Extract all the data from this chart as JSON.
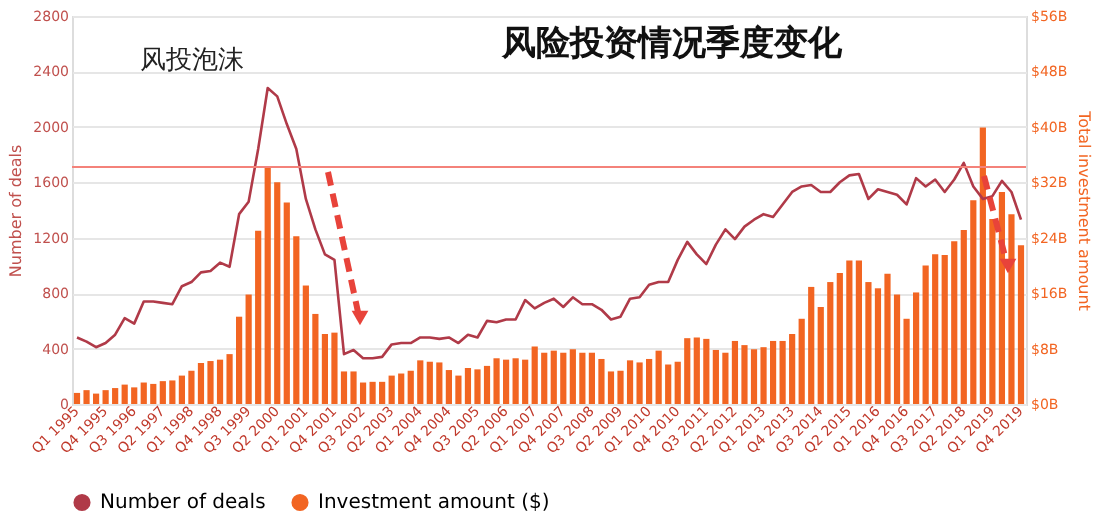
{
  "chart_data": {
    "type": "bar",
    "title": "风险投资情况季度变化",
    "ylabel": "Number of deals",
    "y2label": "Total investment amount",
    "categories": [
      "Q1 1995",
      null,
      null,
      "Q4 1995",
      null,
      null,
      "Q3 1996",
      null,
      null,
      "Q2 1997",
      null,
      null,
      "Q1 1998",
      null,
      null,
      "Q4 1998",
      null,
      null,
      "Q3 1999",
      null,
      null,
      "Q2 2000",
      null,
      null,
      "Q1 2001",
      null,
      null,
      "Q4 2001",
      null,
      null,
      "Q3 2002",
      null,
      null,
      "Q2 2003",
      null,
      null,
      "Q1 2004",
      null,
      null,
      "Q4 2004",
      null,
      null,
      "Q3 2005",
      null,
      null,
      "Q2 2006",
      null,
      null,
      "Q1 2007",
      null,
      null,
      "Q4 2007",
      null,
      null,
      "Q3 2008",
      null,
      null,
      "Q2 2009",
      null,
      null,
      "Q1 2010",
      null,
      null,
      "Q4 2010",
      null,
      null,
      "Q3 2011",
      null,
      null,
      "Q2 2012",
      null,
      null,
      "Q1 2013",
      null,
      null,
      "Q4 2013",
      null,
      null,
      "Q3 2014",
      null,
      null,
      "Q2 2015",
      null,
      null,
      "Q1 2016",
      null,
      null,
      "Q4 2016",
      null,
      null,
      "Q3 2017",
      null,
      null,
      "Q2 2018",
      null,
      null,
      "Q1 2019",
      null,
      null,
      "Q4 2019"
    ],
    "series": [
      {
        "name": "Number of deals",
        "type": "line",
        "color": "#b03a48",
        "values": [
          480,
          450,
          410,
          440,
          500,
          620,
          580,
          740,
          740,
          730,
          720,
          850,
          880,
          950,
          960,
          1020,
          990,
          1370,
          1460,
          1840,
          2280,
          2220,
          2020,
          1840,
          1480,
          1260,
          1080,
          1040,
          360,
          390,
          330,
          330,
          340,
          430,
          440,
          440,
          480,
          480,
          470,
          480,
          440,
          500,
          480,
          600,
          590,
          610,
          610,
          750,
          690,
          730,
          760,
          700,
          770,
          720,
          720,
          680,
          610,
          630,
          760,
          770,
          860,
          880,
          880,
          1040,
          1170,
          1080,
          1010,
          1150,
          1260,
          1190,
          1280,
          1330,
          1370,
          1350,
          1440,
          1530,
          1570,
          1580,
          1530,
          1530,
          1600,
          1650,
          1660,
          1480,
          1550,
          1530,
          1510,
          1440,
          1630,
          1570,
          1620,
          1530,
          1620,
          1740,
          1570,
          1480,
          1500,
          1610,
          1530,
          1330
        ]
      },
      {
        "name": "Investment amount ($)",
        "axis": "y2",
        "color": "#f26522",
        "values": [
          1.6,
          2.0,
          1.5,
          2.0,
          2.3,
          2.8,
          2.4,
          3.1,
          2.9,
          3.3,
          3.4,
          4.1,
          4.8,
          5.9,
          6.2,
          6.4,
          7.2,
          12.6,
          15.8,
          25.0,
          34.2,
          32.0,
          29.1,
          24.2,
          17.1,
          13.0,
          10.1,
          10.3,
          4.7,
          4.7,
          3.1,
          3.2,
          3.2,
          4.1,
          4.4,
          4.8,
          6.3,
          6.1,
          6.0,
          4.9,
          4.1,
          5.2,
          5.0,
          5.5,
          6.6,
          6.4,
          6.6,
          6.4,
          8.3,
          7.4,
          7.7,
          7.4,
          7.9,
          7.4,
          7.4,
          6.5,
          4.7,
          4.8,
          6.3,
          6.0,
          6.5,
          7.7,
          5.7,
          6.1,
          9.5,
          9.6,
          9.4,
          7.8,
          7.4,
          9.1,
          8.5,
          7.9,
          8.2,
          9.1,
          9.1,
          10.1,
          12.3,
          16.9,
          14.0,
          17.6,
          18.9,
          20.7,
          20.7,
          17.6,
          16.7,
          18.8,
          15.8,
          12.3,
          16.1,
          20.0,
          21.6,
          21.5,
          23.5,
          25.1,
          29.4,
          39.9,
          26.7,
          30.6,
          27.4,
          22.9
        ]
      }
    ],
    "ylim": [
      0,
      2800
    ],
    "yticks": [
      0,
      400,
      800,
      1200,
      1600,
      2000,
      2400,
      2800
    ],
    "y2lim": [
      0,
      56
    ],
    "y2ticks": [
      {
        "value": 0,
        "label": "$0B"
      },
      {
        "value": 8,
        "label": "$8B"
      },
      {
        "value": 16,
        "label": "$16B"
      },
      {
        "value": 24,
        "label": "$24B"
      },
      {
        "value": 32,
        "label": "$32B"
      },
      {
        "value": 40,
        "label": "$40B"
      },
      {
        "value": 48,
        "label": "$48B"
      },
      {
        "value": 56,
        "label": "$56B"
      }
    ],
    "ref_lines": [
      {
        "axis": "y",
        "value": 1710,
        "color": "#f4827a"
      }
    ],
    "annotations": [
      "风投泡沫"
    ],
    "grid": "y",
    "legend": "bottom",
    "marker": "none",
    "line_style": "solid"
  }
}
